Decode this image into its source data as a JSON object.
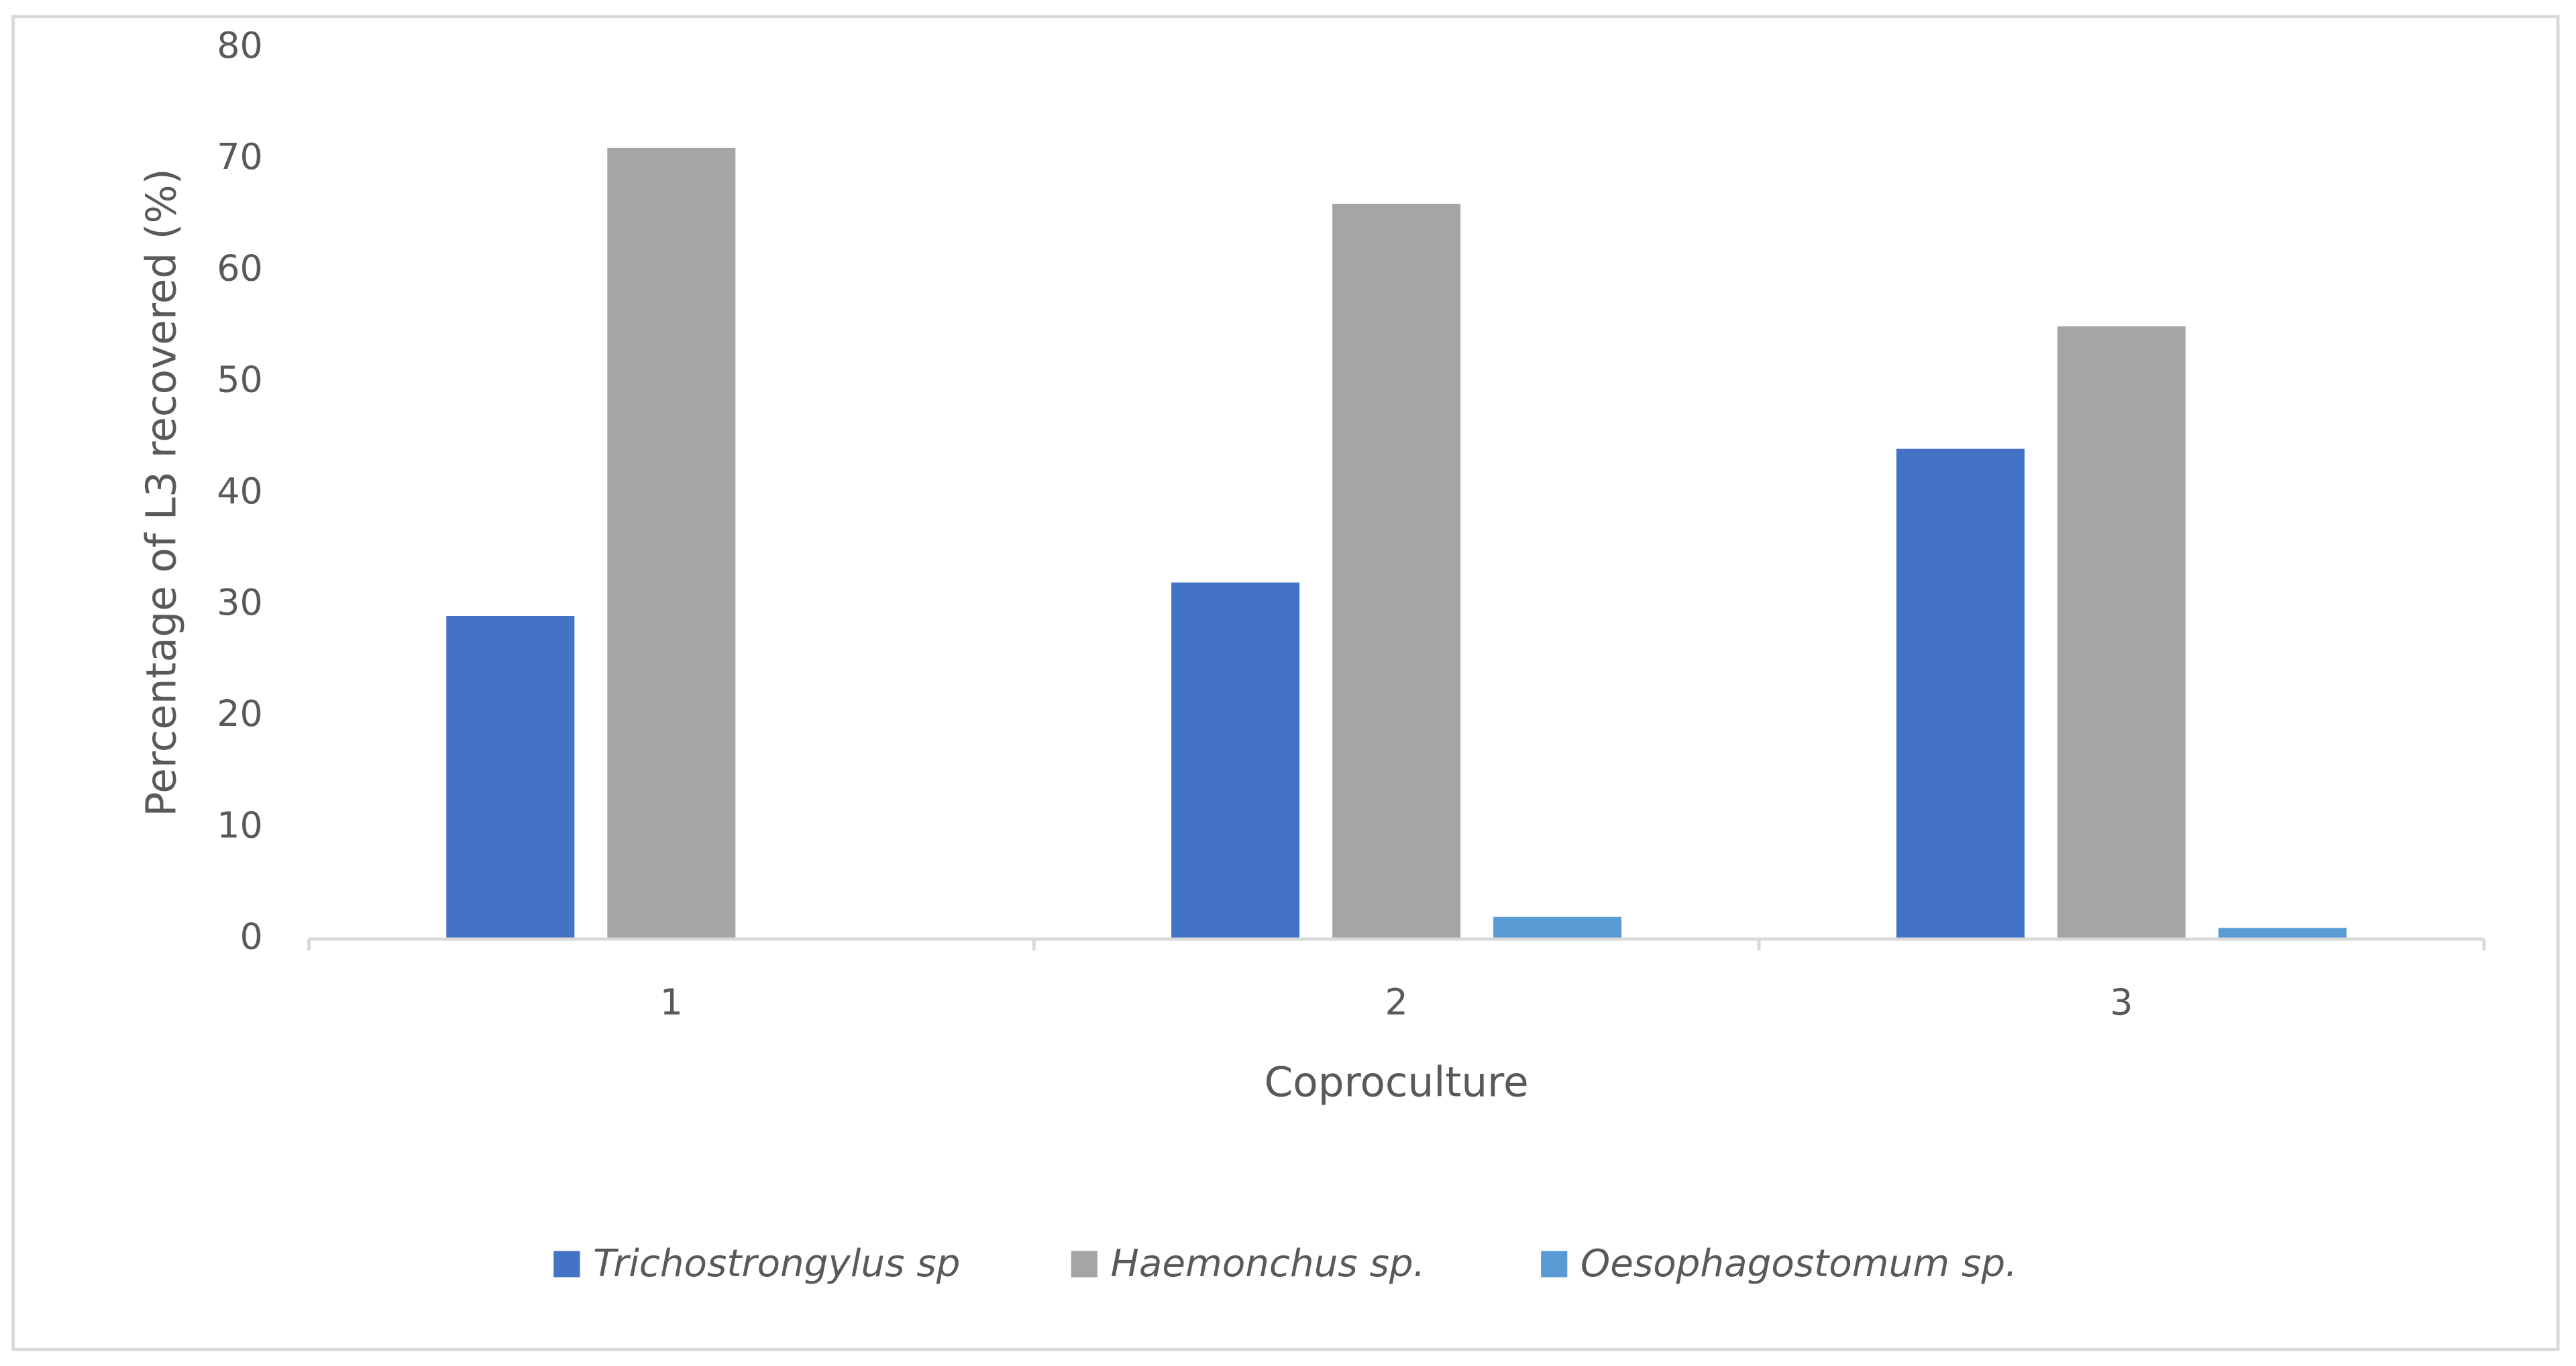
{
  "chart_data": {
    "type": "bar",
    "x_label": "Coproculture",
    "y_label": "Percentage of L3 recovered (%)",
    "categories": [
      "1",
      "2",
      "3"
    ],
    "series": [
      {
        "name": "Trichostrongylus sp",
        "color": "#4472c4",
        "values": [
          29,
          32,
          44
        ]
      },
      {
        "name": "Haemonchus sp.",
        "color": "#a5a5a5",
        "values": [
          71,
          66,
          55
        ]
      },
      {
        "name": "Oesophagostomum sp.",
        "color": "#5b9bd5",
        "values": [
          0,
          2,
          1
        ]
      }
    ],
    "ylim": [
      0,
      80
    ],
    "yticks": [
      0,
      10,
      20,
      30,
      40,
      50,
      60,
      70,
      80
    ],
    "grid": false,
    "legend": "bottom"
  }
}
